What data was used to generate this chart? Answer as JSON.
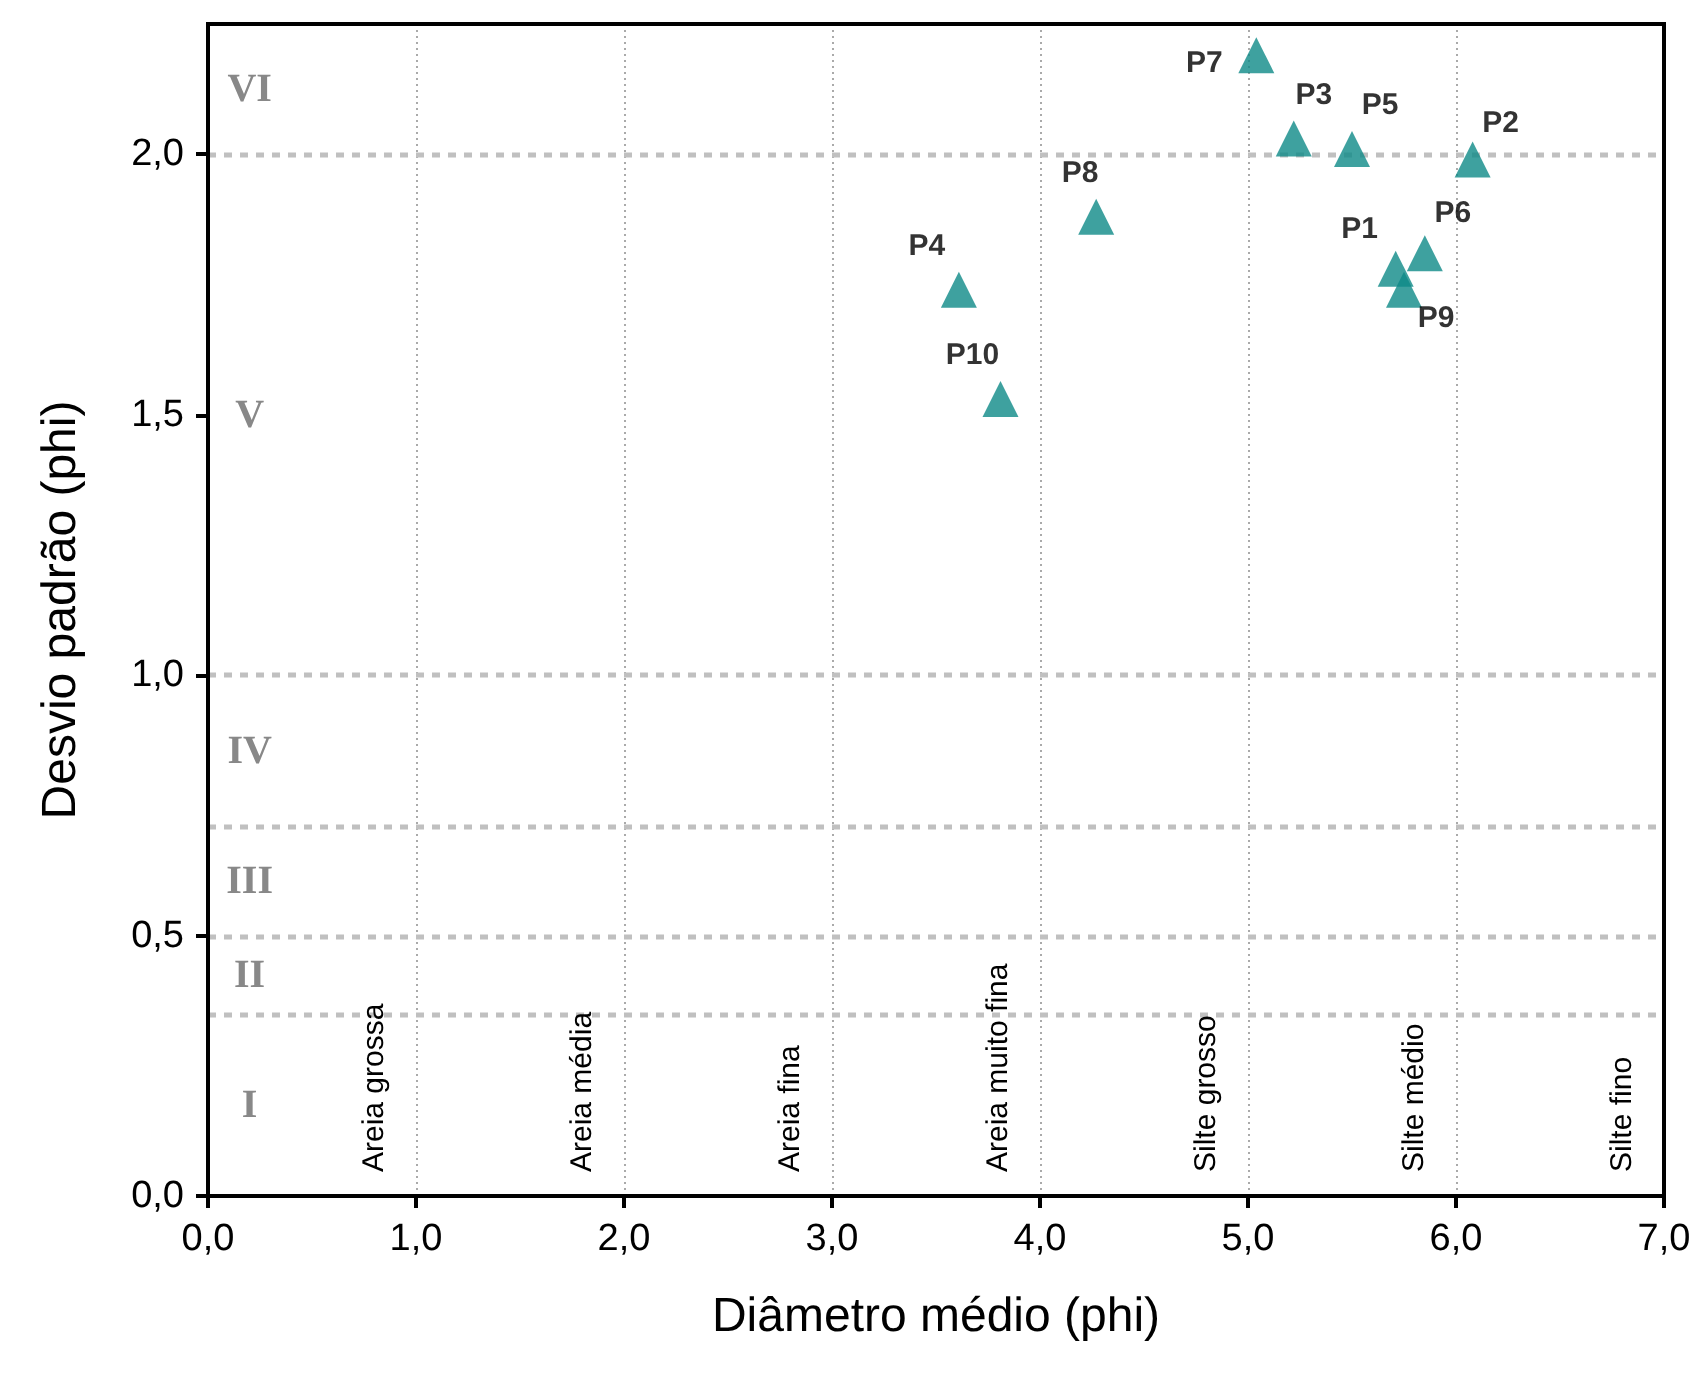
{
  "chart_data": {
    "type": "scatter",
    "xlabel": "Diâmetro médio (phi)",
    "ylabel": "Desvio padrão (phi)",
    "xlim": [
      0,
      7
    ],
    "ylim": [
      0,
      2.25
    ],
    "xticks": [
      {
        "value": 0,
        "label": "0,0"
      },
      {
        "value": 1,
        "label": "1,0"
      },
      {
        "value": 2,
        "label": "2,0"
      },
      {
        "value": 3,
        "label": "3,0"
      },
      {
        "value": 4,
        "label": "4,0"
      },
      {
        "value": 5,
        "label": "5,0"
      },
      {
        "value": 6,
        "label": "6,0"
      },
      {
        "value": 7,
        "label": "7,0"
      }
    ],
    "yticks": [
      {
        "value": 0,
        "label": "0,0"
      },
      {
        "value": 0.5,
        "label": "0,5"
      },
      {
        "value": 1,
        "label": "1,0"
      },
      {
        "value": 1.5,
        "label": "1,5"
      },
      {
        "value": 2,
        "label": "2,0"
      }
    ],
    "grid": "x",
    "marker": "triangle",
    "legend": false,
    "series": [
      {
        "name": "P1",
        "color": "#0e8a87",
        "x": [
          5.71
        ],
        "values": [
          1.78
        ]
      },
      {
        "name": "P2",
        "color": "#0e8a87",
        "x": [
          6.08
        ],
        "values": [
          1.99
        ]
      },
      {
        "name": "P3",
        "color": "#0e8a87",
        "x": [
          5.22
        ],
        "values": [
          2.03
        ]
      },
      {
        "name": "P4",
        "color": "#0e8a87",
        "x": [
          3.61
        ],
        "values": [
          1.74
        ]
      },
      {
        "name": "P5",
        "color": "#0e8a87",
        "x": [
          5.5
        ],
        "values": [
          2.01
        ]
      },
      {
        "name": "P6",
        "color": "#0e8a87",
        "x": [
          5.85
        ],
        "values": [
          1.81
        ]
      },
      {
        "name": "P7",
        "color": "#0e8a87",
        "x": [
          5.04
        ],
        "values": [
          2.19
        ]
      },
      {
        "name": "P8",
        "color": "#0e8a87",
        "x": [
          4.27
        ],
        "values": [
          1.88
        ]
      },
      {
        "name": "P9",
        "color": "#0e8a87",
        "x": [
          5.75
        ],
        "values": [
          1.74
        ]
      },
      {
        "name": "P10",
        "color": "#0e8a87",
        "x": [
          3.81
        ],
        "values": [
          1.53
        ]
      }
    ],
    "ref_lines": [
      {
        "axis": "y",
        "value": 0.35,
        "label": null,
        "color": "#c0c0c0",
        "line_style": "dashed"
      },
      {
        "axis": "y",
        "value": 0.5,
        "label": null,
        "color": "#c0c0c0",
        "line_style": "dashed"
      },
      {
        "axis": "y",
        "value": 0.71,
        "label": null,
        "color": "#c0c0c0",
        "line_style": "dashed"
      },
      {
        "axis": "y",
        "value": 1,
        "label": null,
        "color": "#c0c0c0",
        "line_style": "dashed"
      },
      {
        "axis": "y",
        "value": 2,
        "label": null,
        "color": "#c0c0c0",
        "line_style": "dashed"
      }
    ],
    "annotations": [
      "Areia grossa",
      "Areia média",
      "Areia fina",
      "Areia muito fina",
      "Silte grosso",
      "Silte médio",
      "Silte fino",
      "I",
      "II",
      "III",
      "IV",
      "V",
      "VI"
    ]
  }
}
